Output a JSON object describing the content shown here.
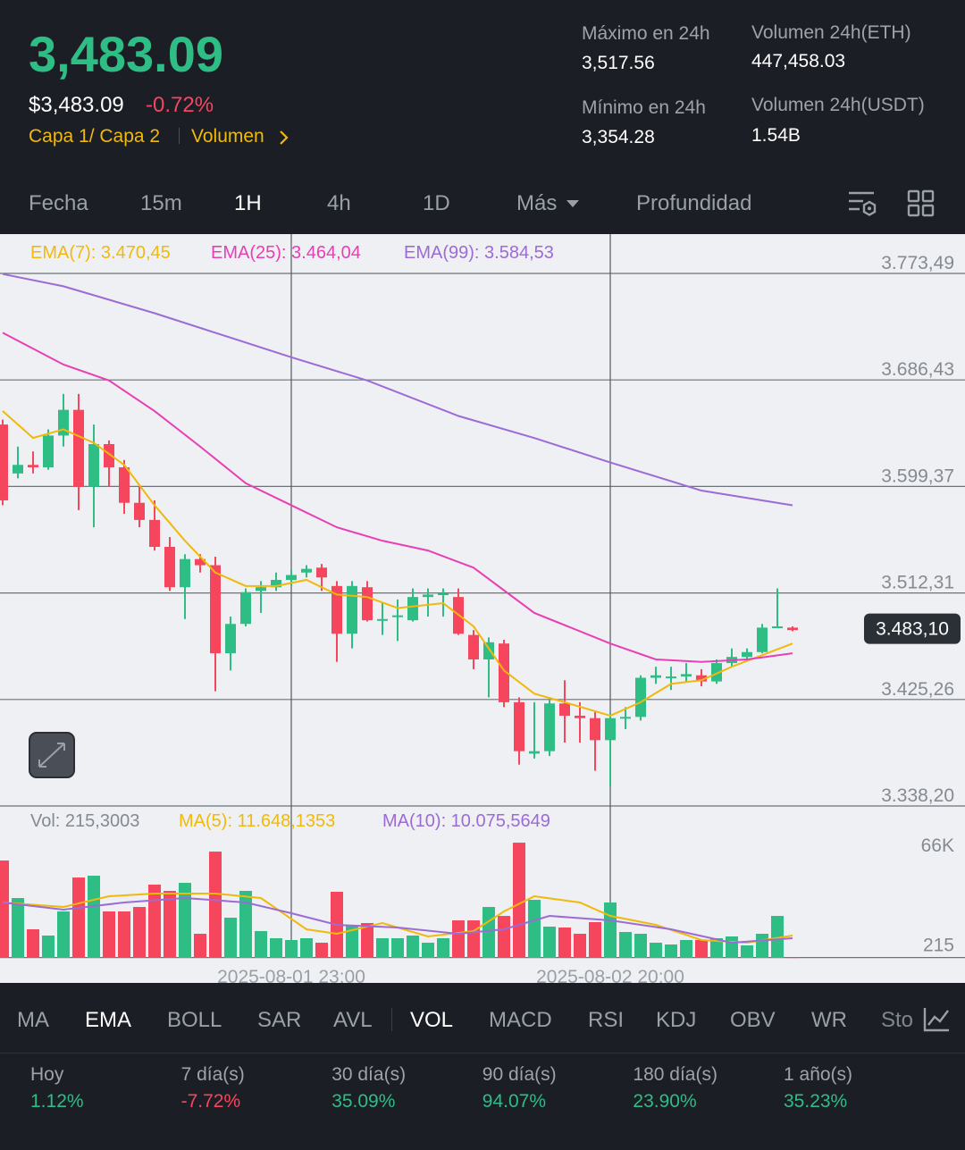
{
  "header": {
    "price": "3,483.09",
    "price_usd": "$3,483.09",
    "change": "-0.72%",
    "tag": "Capa 1/ Capa 2",
    "volume_link": "Volumen",
    "stats": [
      {
        "label": "Máximo en 24h",
        "value": "3,517.56"
      },
      {
        "label": "Volumen 24h(ETH)",
        "value": "447,458.03"
      },
      {
        "label": "Mínimo en 24h",
        "value": "3,354.28"
      },
      {
        "label": "Volumen 24h(USDT)",
        "value": "1.54B"
      }
    ]
  },
  "timeframes": [
    "Fecha",
    "15m",
    "1H",
    "4h",
    "1D",
    "Más",
    "Profundidad"
  ],
  "chart_data": [
    {
      "type": "candlestick",
      "up_color": "#2ebd85",
      "down_color": "#f6465d",
      "open": [
        3650,
        3610,
        3617,
        3615,
        3641,
        3662,
        3599,
        3634,
        3615,
        3586,
        3572,
        3550,
        3517,
        3540,
        3535,
        3463,
        3487,
        3514,
        3517,
        3523,
        3529,
        3533,
        3518,
        3479,
        3517,
        3490,
        3493,
        3490,
        3509,
        3511,
        3509,
        3478,
        3458,
        3471,
        3423,
        3381,
        3383,
        3422,
        3412,
        3410,
        3392,
        3410,
        3411,
        3443,
        3443,
        3444,
        3445,
        3440,
        3455,
        3460,
        3464,
        3484,
        3484
      ],
      "high": [
        3654,
        3632,
        3628,
        3646,
        3675,
        3675,
        3650,
        3637,
        3621,
        3599,
        3588,
        3558,
        3544,
        3544,
        3542,
        3493,
        3516,
        3522,
        3529,
        3531,
        3535,
        3536,
        3522,
        3522,
        3522,
        3504,
        3507,
        3516,
        3516,
        3516,
        3516,
        3482,
        3476,
        3474,
        3427,
        3423,
        3425,
        3441,
        3423,
        3416,
        3414,
        3419,
        3445,
        3452,
        3452,
        3455,
        3450,
        3458,
        3467,
        3467,
        3487,
        3516,
        3485
      ],
      "low": [
        3584,
        3606,
        3610,
        3613,
        3632,
        3580,
        3566,
        3599,
        3577,
        3566,
        3547,
        3514,
        3491,
        3529,
        3432,
        3449,
        3485,
        3496,
        3514,
        3518,
        3525,
        3514,
        3456,
        3467,
        3489,
        3478,
        3473,
        3489,
        3493,
        3493,
        3478,
        3450,
        3427,
        3419,
        3372,
        3377,
        3379,
        3390,
        3390,
        3367,
        3354,
        3401,
        3408,
        3438,
        3433,
        3439,
        3436,
        3438,
        3452,
        3456,
        3463,
        3484,
        3481
      ],
      "close": [
        3588,
        3617,
        3615,
        3641,
        3662,
        3599,
        3634,
        3615,
        3586,
        3572,
        3550,
        3517,
        3540,
        3535,
        3463,
        3487,
        3513,
        3517,
        3523,
        3527,
        3532,
        3525,
        3479,
        3518,
        3490,
        3491,
        3494,
        3509,
        3511,
        3512,
        3479,
        3458,
        3472,
        3423,
        3383,
        3383,
        3422,
        3412,
        3410,
        3392,
        3410,
        3411,
        3443,
        3445,
        3444,
        3446,
        3440,
        3455,
        3460,
        3464,
        3484,
        3485,
        3482
      ],
      "series": [
        {
          "name": "EMA(7): 3.470,45",
          "color": "#f0b90b",
          "x": [
            0,
            2,
            4,
            6,
            8,
            10,
            12,
            14,
            16,
            18,
            20,
            22,
            24,
            26,
            29,
            31,
            33,
            35,
            37,
            40,
            42,
            44,
            46,
            48,
            52
          ],
          "values": [
            3661,
            3639,
            3646,
            3635,
            3617,
            3584,
            3555,
            3529,
            3518,
            3518,
            3523,
            3511,
            3509,
            3500,
            3504,
            3485,
            3449,
            3430,
            3423,
            3412,
            3423,
            3438,
            3441,
            3452,
            3471
          ]
        },
        {
          "name": "EMA(25): 3.464,04",
          "color": "#e83fb4",
          "x": [
            0,
            4,
            7,
            10,
            13,
            16,
            19,
            22,
            25,
            28,
            31,
            35,
            40,
            43,
            46,
            49,
            52
          ],
          "values": [
            3725,
            3699,
            3686,
            3661,
            3632,
            3602,
            3584,
            3566,
            3555,
            3547,
            3533,
            3496,
            3471,
            3458,
            3456,
            3458,
            3463
          ]
        },
        {
          "name": "EMA(99): 3.584,53",
          "color": "#9c6bd6",
          "x": [
            0,
            4,
            10,
            19,
            24,
            30,
            35,
            40,
            46,
            52
          ],
          "values": [
            3773,
            3763,
            3741,
            3705,
            3686,
            3657,
            3639,
            3619,
            3596,
            3584
          ]
        }
      ],
      "ylim": [
        3338.2,
        3805.63
      ],
      "yticks": [
        {
          "value": 3773.49,
          "label": "3.773,49"
        },
        {
          "value": 3686.43,
          "label": "3.686,43"
        },
        {
          "value": 3599.37,
          "label": "3.599,37"
        },
        {
          "value": 3512.31,
          "label": "3.512,31"
        },
        {
          "value": 3425.26,
          "label": "3.425,26"
        },
        {
          "value": 3338.2,
          "label": "3.338,20"
        }
      ],
      "xticks": [
        {
          "value": 19,
          "label": "2025-08-01 23:00"
        },
        {
          "value": 40,
          "label": "2025-08-02 20:00"
        }
      ],
      "last_price": {
        "value": 3483.1,
        "label": "3.483,10"
      },
      "grid": true
    },
    {
      "type": "bar",
      "legend": "Vol: 215,3003",
      "values": [
        64200,
        39460,
        18850,
        14730,
        30630,
        53010,
        54190,
        30630,
        30630,
        33570,
        48300,
        44180,
        49480,
        15900,
        70090,
        26500,
        44180,
        17670,
        12960,
        11780,
        12960,
        10010,
        43590,
        21790,
        22970,
        12960,
        12960,
        14730,
        10010,
        12960,
        24740,
        24740,
        33570,
        27680,
        75980,
        38290,
        20620,
        20030,
        15900,
        23560,
        36520,
        17080,
        15900,
        10010,
        8840,
        11780,
        11780,
        12960,
        14140,
        8250,
        15900,
        27680,
        215.3003
      ],
      "series": [
        {
          "name": "MA(5): 11.648,1353",
          "color": "#f0b90b",
          "x": [
            0,
            4,
            7,
            10,
            14,
            17,
            20,
            22,
            25,
            28,
            31,
            33,
            35,
            38,
            40,
            43,
            46,
            49,
            52
          ],
          "values": [
            36520,
            33570,
            40640,
            42410,
            42410,
            39460,
            18850,
            15900,
            22970,
            14140,
            17670,
            30630,
            40640,
            36520,
            27680,
            21790,
            11780,
            10010,
            14730
          ]
        },
        {
          "name": "MA(10): 10.075,5649",
          "color": "#9c6bd6",
          "x": [
            0,
            4,
            8,
            12,
            16,
            19,
            22,
            26,
            30,
            33,
            36,
            40,
            44,
            48,
            52
          ],
          "values": [
            36520,
            31810,
            36520,
            39460,
            36520,
            29450,
            21790,
            20030,
            15900,
            18850,
            27680,
            24740,
            18850,
            10010,
            12960
          ]
        }
      ],
      "ylim": [
        0,
        98400
      ],
      "yticks": [
        {
          "value": 66000,
          "label": "66K"
        },
        215
      ]
    }
  ],
  "indicators": [
    "MA",
    "EMA",
    "BOLL",
    "SAR",
    "AVL",
    "VOL",
    "MACD",
    "RSI",
    "KDJ",
    "OBV",
    "WR",
    "Sto"
  ],
  "performance": [
    {
      "label": "Hoy",
      "value": "1.12%"
    },
    {
      "label": "7 día(s)",
      "value": "-7.72%"
    },
    {
      "label": "30 día(s)",
      "value": "35.09%"
    },
    {
      "label": "90 día(s)",
      "value": "94.07%"
    },
    {
      "label": "180 día(s)",
      "value": "23.90%"
    },
    {
      "label": "1 año(s)",
      "value": "35.23%"
    }
  ]
}
